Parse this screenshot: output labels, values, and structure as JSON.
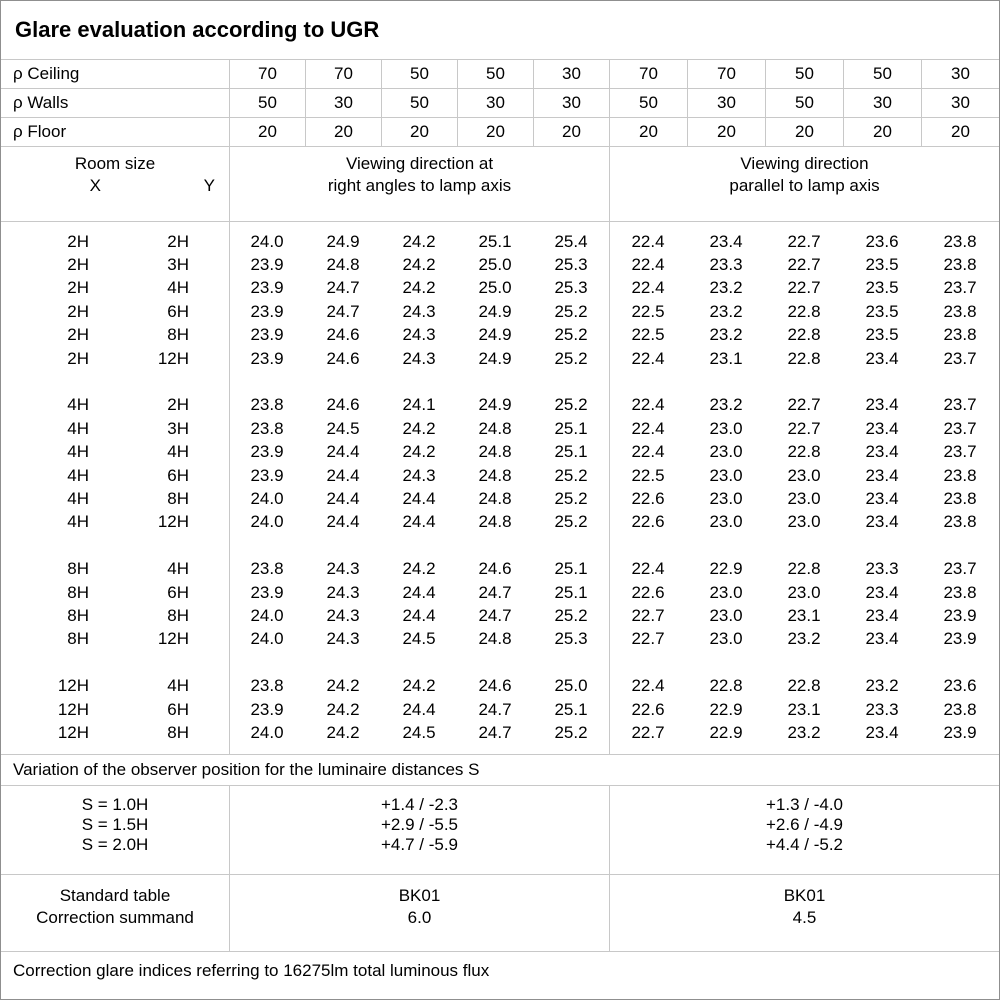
{
  "title": "Glare evaluation according to UGR",
  "colors": {
    "background": "#ffffff",
    "text": "#000000",
    "grid_line": "#c8c8c8",
    "outer_border": "#8f8f8f"
  },
  "reflectances": {
    "rows": [
      {
        "label": "ρ Ceiling",
        "values": [
          "70",
          "70",
          "50",
          "50",
          "30",
          "70",
          "70",
          "50",
          "50",
          "30"
        ]
      },
      {
        "label": "ρ Walls",
        "values": [
          "50",
          "30",
          "50",
          "30",
          "30",
          "50",
          "30",
          "50",
          "30",
          "30"
        ]
      },
      {
        "label": "ρ Floor",
        "values": [
          "20",
          "20",
          "20",
          "20",
          "20",
          "20",
          "20",
          "20",
          "20",
          "20"
        ]
      }
    ]
  },
  "header": {
    "room_size_label": "Room size",
    "x_label": "X",
    "y_label": "Y",
    "left_group_line1": "Viewing direction at",
    "left_group_line2": "right angles to lamp axis",
    "right_group_line1": "Viewing direction",
    "right_group_line2": "parallel to lamp axis"
  },
  "ugr_blocks": [
    {
      "rows": [
        {
          "x": "2H",
          "y": "2H",
          "right_angles": [
            "24.0",
            "24.9",
            "24.2",
            "25.1",
            "25.4"
          ],
          "parallel": [
            "22.4",
            "23.4",
            "22.7",
            "23.6",
            "23.8"
          ]
        },
        {
          "x": "2H",
          "y": "3H",
          "right_angles": [
            "23.9",
            "24.8",
            "24.2",
            "25.0",
            "25.3"
          ],
          "parallel": [
            "22.4",
            "23.3",
            "22.7",
            "23.5",
            "23.8"
          ]
        },
        {
          "x": "2H",
          "y": "4H",
          "right_angles": [
            "23.9",
            "24.7",
            "24.2",
            "25.0",
            "25.3"
          ],
          "parallel": [
            "22.4",
            "23.2",
            "22.7",
            "23.5",
            "23.7"
          ]
        },
        {
          "x": "2H",
          "y": "6H",
          "right_angles": [
            "23.9",
            "24.7",
            "24.3",
            "24.9",
            "25.2"
          ],
          "parallel": [
            "22.5",
            "23.2",
            "22.8",
            "23.5",
            "23.8"
          ]
        },
        {
          "x": "2H",
          "y": "8H",
          "right_angles": [
            "23.9",
            "24.6",
            "24.3",
            "24.9",
            "25.2"
          ],
          "parallel": [
            "22.5",
            "23.2",
            "22.8",
            "23.5",
            "23.8"
          ]
        },
        {
          "x": "2H",
          "y": "12H",
          "right_angles": [
            "23.9",
            "24.6",
            "24.3",
            "24.9",
            "25.2"
          ],
          "parallel": [
            "22.4",
            "23.1",
            "22.8",
            "23.4",
            "23.7"
          ]
        }
      ]
    },
    {
      "rows": [
        {
          "x": "4H",
          "y": "2H",
          "right_angles": [
            "23.8",
            "24.6",
            "24.1",
            "24.9",
            "25.2"
          ],
          "parallel": [
            "22.4",
            "23.2",
            "22.7",
            "23.4",
            "23.7"
          ]
        },
        {
          "x": "4H",
          "y": "3H",
          "right_angles": [
            "23.8",
            "24.5",
            "24.2",
            "24.8",
            "25.1"
          ],
          "parallel": [
            "22.4",
            "23.0",
            "22.7",
            "23.4",
            "23.7"
          ]
        },
        {
          "x": "4H",
          "y": "4H",
          "right_angles": [
            "23.9",
            "24.4",
            "24.2",
            "24.8",
            "25.1"
          ],
          "parallel": [
            "22.4",
            "23.0",
            "22.8",
            "23.4",
            "23.7"
          ]
        },
        {
          "x": "4H",
          "y": "6H",
          "right_angles": [
            "23.9",
            "24.4",
            "24.3",
            "24.8",
            "25.2"
          ],
          "parallel": [
            "22.5",
            "23.0",
            "23.0",
            "23.4",
            "23.8"
          ]
        },
        {
          "x": "4H",
          "y": "8H",
          "right_angles": [
            "24.0",
            "24.4",
            "24.4",
            "24.8",
            "25.2"
          ],
          "parallel": [
            "22.6",
            "23.0",
            "23.0",
            "23.4",
            "23.8"
          ]
        },
        {
          "x": "4H",
          "y": "12H",
          "right_angles": [
            "24.0",
            "24.4",
            "24.4",
            "24.8",
            "25.2"
          ],
          "parallel": [
            "22.6",
            "23.0",
            "23.0",
            "23.4",
            "23.8"
          ]
        }
      ]
    },
    {
      "rows": [
        {
          "x": "8H",
          "y": "4H",
          "right_angles": [
            "23.8",
            "24.3",
            "24.2",
            "24.6",
            "25.1"
          ],
          "parallel": [
            "22.4",
            "22.9",
            "22.8",
            "23.3",
            "23.7"
          ]
        },
        {
          "x": "8H",
          "y": "6H",
          "right_angles": [
            "23.9",
            "24.3",
            "24.4",
            "24.7",
            "25.1"
          ],
          "parallel": [
            "22.6",
            "23.0",
            "23.0",
            "23.4",
            "23.8"
          ]
        },
        {
          "x": "8H",
          "y": "8H",
          "right_angles": [
            "24.0",
            "24.3",
            "24.4",
            "24.7",
            "25.2"
          ],
          "parallel": [
            "22.7",
            "23.0",
            "23.1",
            "23.4",
            "23.9"
          ]
        },
        {
          "x": "8H",
          "y": "12H",
          "right_angles": [
            "24.0",
            "24.3",
            "24.5",
            "24.8",
            "25.3"
          ],
          "parallel": [
            "22.7",
            "23.0",
            "23.2",
            "23.4",
            "23.9"
          ]
        }
      ]
    },
    {
      "rows": [
        {
          "x": "12H",
          "y": "4H",
          "right_angles": [
            "23.8",
            "24.2",
            "24.2",
            "24.6",
            "25.0"
          ],
          "parallel": [
            "22.4",
            "22.8",
            "22.8",
            "23.2",
            "23.6"
          ]
        },
        {
          "x": "12H",
          "y": "6H",
          "right_angles": [
            "23.9",
            "24.2",
            "24.4",
            "24.7",
            "25.1"
          ],
          "parallel": [
            "22.6",
            "22.9",
            "23.1",
            "23.3",
            "23.8"
          ]
        },
        {
          "x": "12H",
          "y": "8H",
          "right_angles": [
            "24.0",
            "24.2",
            "24.5",
            "24.7",
            "25.2"
          ],
          "parallel": [
            "22.7",
            "22.9",
            "23.2",
            "23.4",
            "23.9"
          ]
        }
      ]
    }
  ],
  "variation": {
    "note": "Variation of the observer position for the luminaire distances S",
    "rows": [
      {
        "s": "S = 1.0H",
        "right_angles": "+1.4 / -2.3",
        "parallel": "+1.3 / -4.0"
      },
      {
        "s": "S = 1.5H",
        "right_angles": "+2.9 / -5.5",
        "parallel": "+2.6 / -4.9"
      },
      {
        "s": "S = 2.0H",
        "right_angles": "+4.7 / -5.9",
        "parallel": "+4.4 / -5.2"
      }
    ]
  },
  "summary": {
    "rows": [
      {
        "label": "Standard table",
        "right_angles": "BK01",
        "parallel": "BK01"
      },
      {
        "label": "Correction summand",
        "right_angles": "6.0",
        "parallel": "4.5"
      }
    ]
  },
  "footer": "Correction glare indices referring to 16275lm total luminous flux"
}
